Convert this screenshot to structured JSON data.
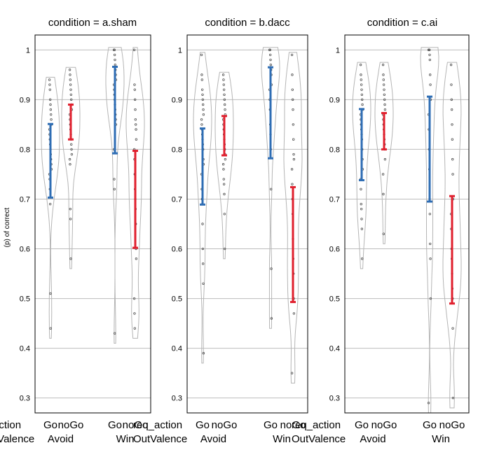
{
  "chart_data": {
    "type": "violin",
    "y_axis_label": "(p) of correct",
    "ylim": [
      0.27,
      1.03
    ],
    "y_ticks": [
      0.3,
      0.4,
      0.5,
      0.6,
      0.7,
      0.8,
      0.9,
      1
    ],
    "grid": true,
    "x_category_label": "req_action",
    "x_group_label": "OutValence",
    "actions": [
      "Go",
      "noGo"
    ],
    "valence": [
      "Avoid",
      "Win"
    ],
    "colors": {
      "Go": "#2e6db4",
      "noGo": "#e0202e",
      "violin": "#b5b5b5",
      "dots": "#555555"
    },
    "panels": [
      {
        "title": "condition = a.sham",
        "x_labels_display": {
          "Go": "Go",
          "noGo": "noGo"
        },
        "cells": [
          {
            "valence": "Avoid",
            "action": "Go",
            "ci": [
              0.703,
              0.851
            ],
            "points": [
              0.94,
              0.93,
              0.92,
              0.9,
              0.89,
              0.88,
              0.87,
              0.86,
              0.85,
              0.84,
              0.83,
              0.82,
              0.81,
              0.8,
              0.79,
              0.78,
              0.77,
              0.76,
              0.75,
              0.74,
              0.72,
              0.69,
              0.51,
              0.44
            ]
          },
          {
            "valence": "Avoid",
            "action": "noGo",
            "ci": [
              0.82,
              0.89
            ],
            "points": [
              0.96,
              0.95,
              0.94,
              0.93,
              0.92,
              0.91,
              0.9,
              0.89,
              0.88,
              0.87,
              0.86,
              0.85,
              0.84,
              0.83,
              0.82,
              0.81,
              0.8,
              0.79,
              0.78,
              0.77,
              0.68,
              0.66,
              0.58
            ]
          },
          {
            "valence": "Win",
            "action": "Go",
            "ci": [
              0.792,
              0.966
            ],
            "points": [
              1,
              1,
              1,
              0.99,
              0.98,
              0.97,
              0.96,
              0.95,
              0.94,
              0.93,
              0.92,
              0.91,
              0.9,
              0.89,
              0.88,
              0.87,
              0.86,
              0.85,
              0.8,
              0.74,
              0.72,
              0.43
            ]
          },
          {
            "valence": "Win",
            "action": "noGo",
            "ci": [
              0.602,
              0.797
            ],
            "points": [
              1,
              0.93,
              0.92,
              0.9,
              0.88,
              0.86,
              0.85,
              0.84,
              0.82,
              0.8,
              0.78,
              0.75,
              0.72,
              0.7,
              0.68,
              0.65,
              0.6,
              0.58,
              0.5,
              0.47,
              0.44
            ]
          }
        ]
      },
      {
        "title": "condition = b.dacc",
        "x_labels_display": {
          "Go": "Go",
          "noGo": "noGo"
        },
        "cells": [
          {
            "valence": "Avoid",
            "action": "Go",
            "ci": [
              0.689,
              0.842
            ],
            "points": [
              0.99,
              0.95,
              0.94,
              0.92,
              0.91,
              0.9,
              0.89,
              0.88,
              0.87,
              0.86,
              0.85,
              0.84,
              0.83,
              0.82,
              0.81,
              0.8,
              0.78,
              0.77,
              0.75,
              0.72,
              0.7,
              0.69,
              0.65,
              0.6,
              0.57,
              0.53,
              0.39
            ]
          },
          {
            "valence": "Avoid",
            "action": "noGo",
            "ci": [
              0.788,
              0.867
            ],
            "points": [
              0.95,
              0.94,
              0.93,
              0.92,
              0.91,
              0.9,
              0.89,
              0.88,
              0.87,
              0.86,
              0.85,
              0.84,
              0.83,
              0.82,
              0.81,
              0.8,
              0.79,
              0.78,
              0.77,
              0.76,
              0.74,
              0.73,
              0.71,
              0.67,
              0.6
            ]
          },
          {
            "valence": "Win",
            "action": "Go",
            "ci": [
              0.782,
              0.965
            ],
            "points": [
              1,
              1,
              1,
              0.99,
              0.98,
              0.97,
              0.96,
              0.95,
              0.93,
              0.92,
              0.9,
              0.88,
              0.85,
              0.83,
              0.8,
              0.72,
              0.56,
              0.46
            ]
          },
          {
            "valence": "Win",
            "action": "noGo",
            "ci": [
              0.493,
              0.724
            ],
            "points": [
              0.99,
              0.95,
              0.92,
              0.9,
              0.88,
              0.85,
              0.82,
              0.79,
              0.78,
              0.76,
              0.73,
              0.7,
              0.67,
              0.62,
              0.58,
              0.55,
              0.5,
              0.47,
              0.35
            ]
          }
        ]
      },
      {
        "title": "condition = c.ai",
        "x_labels_display": {
          "Go": "Go",
          "noGo": "noGo"
        },
        "cells": [
          {
            "valence": "Avoid",
            "action": "Go",
            "ci": [
              0.738,
              0.881
            ],
            "points": [
              0.97,
              0.95,
              0.94,
              0.93,
              0.92,
              0.91,
              0.9,
              0.89,
              0.88,
              0.87,
              0.86,
              0.85,
              0.84,
              0.83,
              0.82,
              0.8,
              0.78,
              0.76,
              0.74,
              0.72,
              0.69,
              0.68,
              0.66,
              0.64,
              0.58
            ]
          },
          {
            "valence": "Avoid",
            "action": "noGo",
            "ci": [
              0.8,
              0.873
            ],
            "points": [
              0.97,
              0.95,
              0.94,
              0.93,
              0.92,
              0.91,
              0.9,
              0.89,
              0.88,
              0.87,
              0.86,
              0.85,
              0.84,
              0.83,
              0.82,
              0.81,
              0.8,
              0.78,
              0.75,
              0.71,
              0.63
            ]
          },
          {
            "valence": "Win",
            "action": "Go",
            "ci": [
              0.695,
              0.906
            ],
            "points": [
              1,
              1,
              1,
              1,
              0.99,
              0.98,
              0.95,
              0.93,
              0.9,
              0.87,
              0.84,
              0.8,
              0.76,
              0.7,
              0.67,
              0.61,
              0.58,
              0.5,
              0.29
            ]
          },
          {
            "valence": "Win",
            "action": "noGo",
            "ci": [
              0.49,
              0.706
            ],
            "points": [
              0.97,
              0.93,
              0.9,
              0.88,
              0.85,
              0.82,
              0.78,
              0.75,
              0.7,
              0.67,
              0.64,
              0.6,
              0.58,
              0.55,
              0.52,
              0.5,
              0.44,
              0.3
            ]
          }
        ]
      }
    ]
  }
}
